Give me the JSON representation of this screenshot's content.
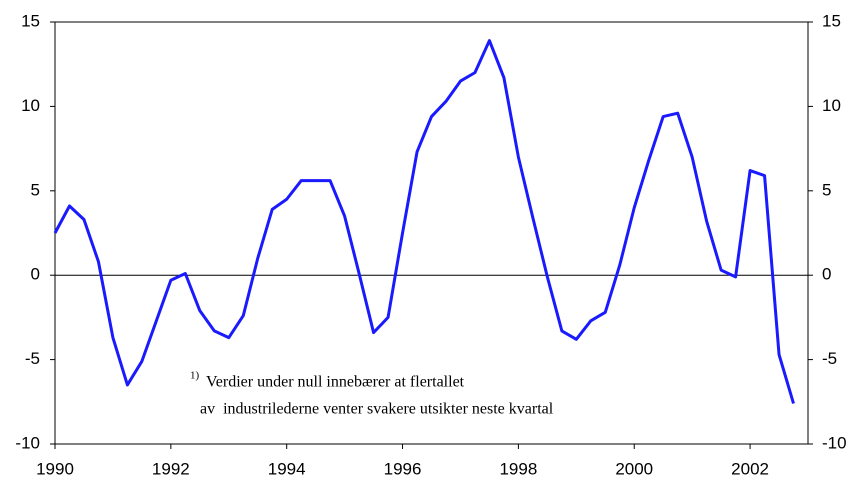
{
  "chart_data": {
    "type": "line",
    "x": [
      1990,
      1990.25,
      1990.5,
      1990.75,
      1991,
      1991.25,
      1991.5,
      1991.75,
      1992,
      1992.25,
      1992.5,
      1992.75,
      1993,
      1993.25,
      1993.5,
      1993.75,
      1994,
      1994.25,
      1994.5,
      1994.75,
      1995,
      1995.25,
      1995.5,
      1995.75,
      1996,
      1996.25,
      1996.5,
      1996.75,
      1997,
      1997.25,
      1997.5,
      1997.75,
      1998,
      1998.25,
      1998.5,
      1998.75,
      1999,
      1999.25,
      1999.5,
      1999.75,
      2000,
      2000.25,
      2000.5,
      2000.75,
      2001,
      2001.25,
      2001.5,
      2001.75,
      2002,
      2002.25,
      2002.5,
      2002.75
    ],
    "series": [
      {
        "color": "#1a1aff",
        "values": [
          2.5,
          4.1,
          3.3,
          0.8,
          -3.7,
          -6.5,
          -5.1,
          -2.7,
          -0.3,
          0.1,
          -2.1,
          -3.3,
          -3.7,
          -2.4,
          1.0,
          3.9,
          4.5,
          5.6,
          5.6,
          5.6,
          3.5,
          0.1,
          -3.4,
          -2.5,
          2.5,
          7.3,
          9.4,
          10.3,
          11.5,
          12.0,
          13.9,
          11.7,
          7.0,
          3.4,
          -0.1,
          -3.3,
          -3.8,
          -2.7,
          -2.2,
          0.6,
          4.0,
          6.8,
          9.4,
          9.6,
          7.0,
          3.2,
          0.3,
          -0.1,
          6.2,
          5.9,
          -4.7,
          -7.6
        ]
      }
    ],
    "xlim": [
      1990,
      2003
    ],
    "xticks": [
      1990,
      1992,
      1994,
      1996,
      1998,
      2000,
      2002
    ],
    "ylim": [
      -10,
      15
    ],
    "yticks": [
      -10,
      -5,
      0,
      5,
      10,
      15
    ],
    "y2lim": [
      -10,
      15
    ],
    "y2ticks": [
      -10,
      -5,
      0,
      5,
      10,
      15
    ],
    "note_marker": "1)",
    "note_lines": [
      "Verdier under null innebærer at flertallet",
      " av  industrilederne venter svakere utsikter neste kvartal"
    ]
  }
}
